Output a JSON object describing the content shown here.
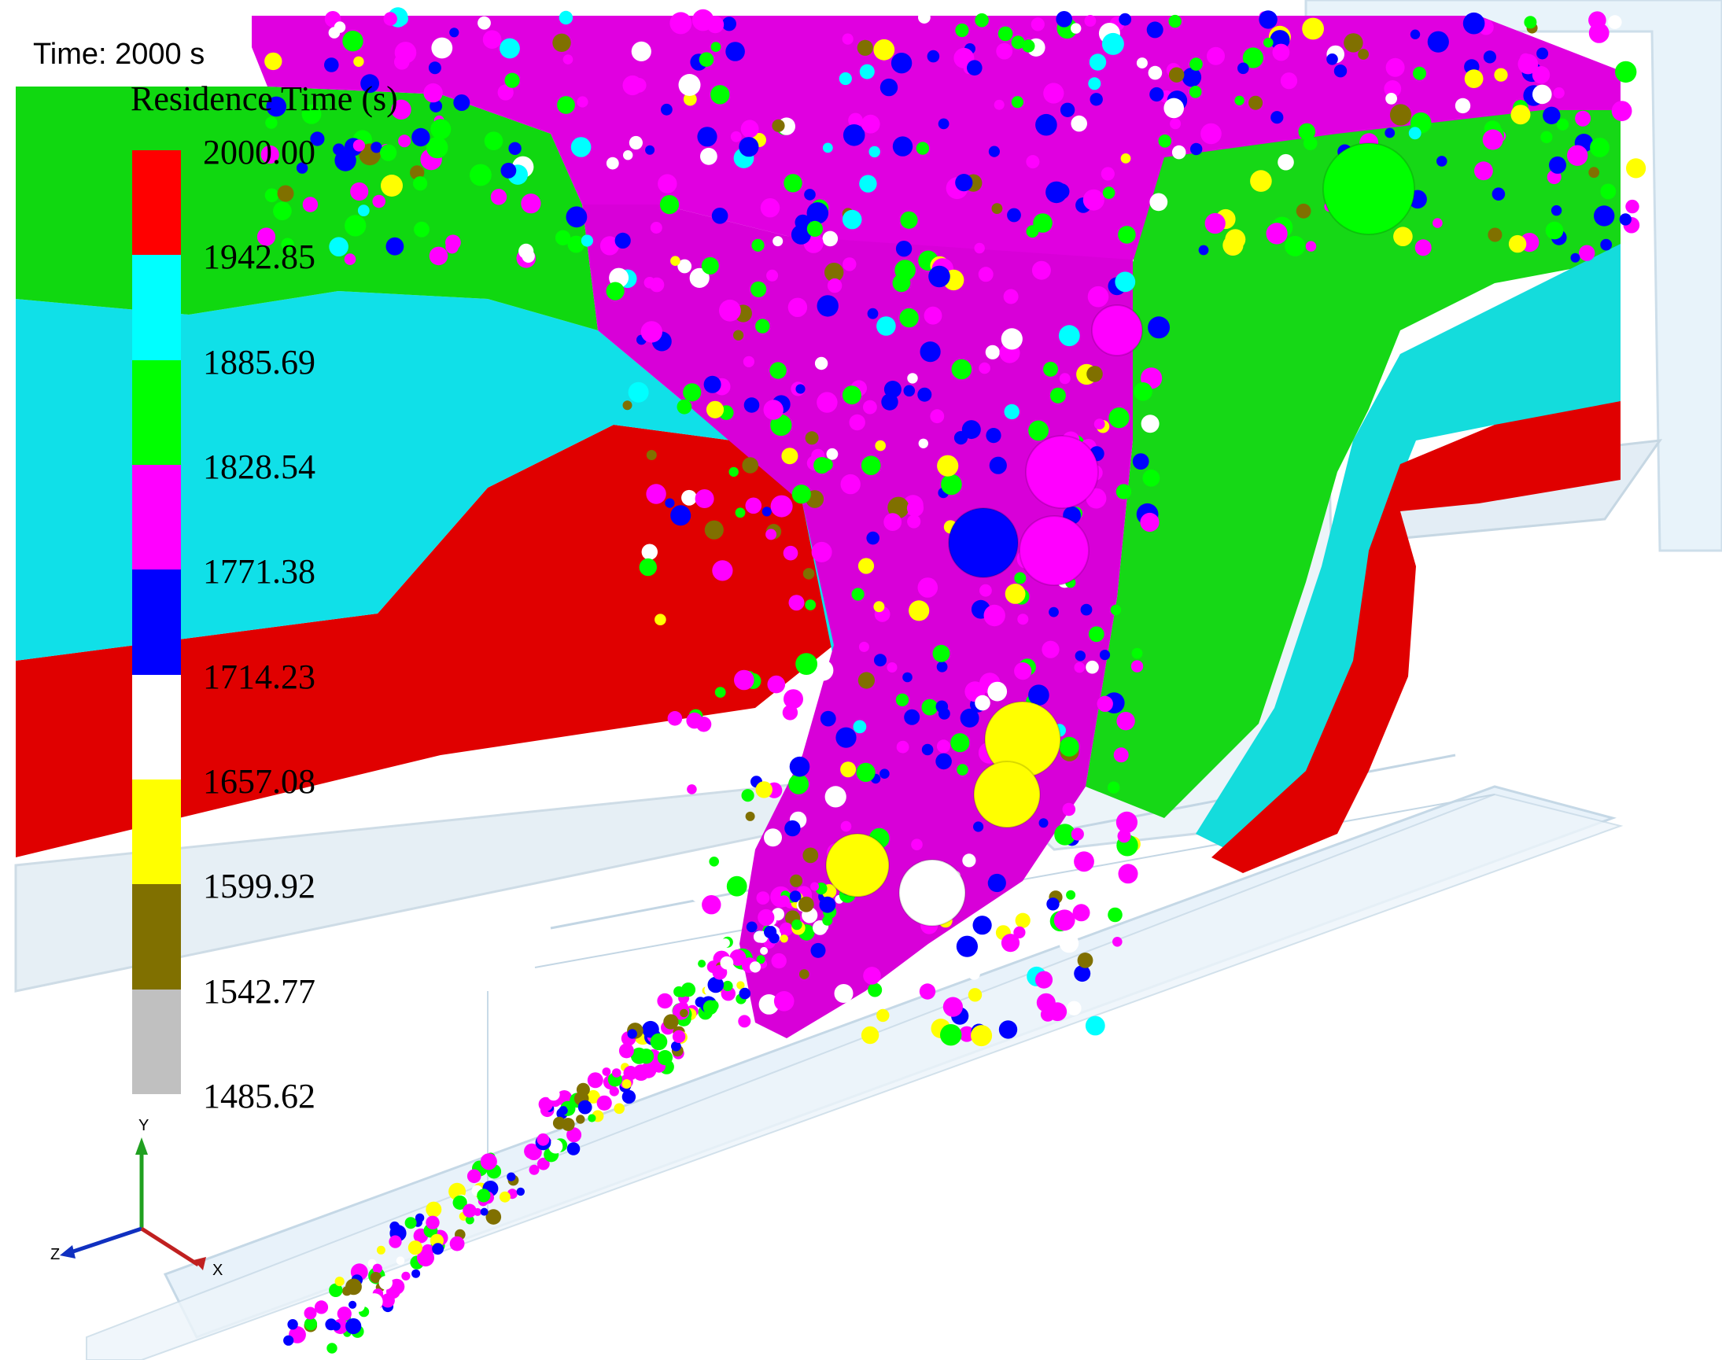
{
  "time_label": "Time: 2000 s",
  "legend": {
    "title": "Residence Time (s)",
    "ticks": [
      "2000.00",
      "1942.85",
      "1885.69",
      "1828.54",
      "1771.38",
      "1714.23",
      "1657.08",
      "1599.92",
      "1542.77",
      "1485.62"
    ],
    "colors": [
      "#ff0000",
      "#00ffff",
      "#00ff00",
      "#ff00ff",
      "#0000ff",
      "#ffffff",
      "#ffff00",
      "#807000",
      "#c0c0c0"
    ]
  },
  "axes": {
    "y": "Y",
    "z": "Z",
    "x": "X"
  }
}
